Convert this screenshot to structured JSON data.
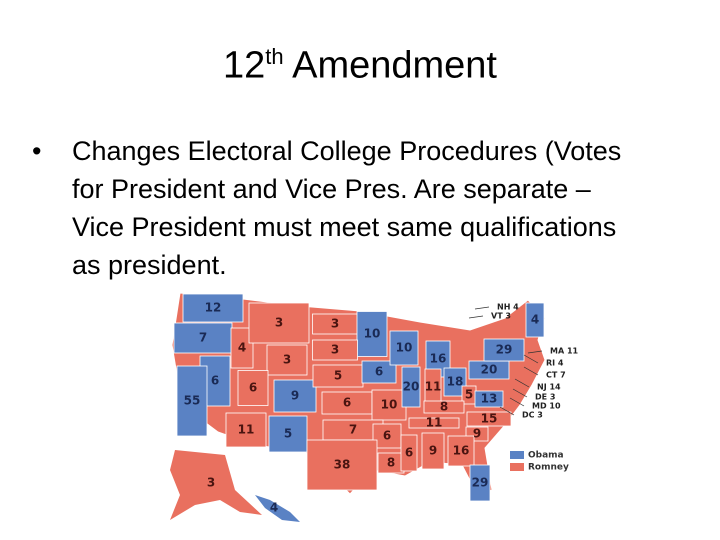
{
  "title": {
    "number": "12",
    "suffix": "th",
    "text": "Amendment"
  },
  "bullet": {
    "symbol": "•",
    "lines": [
      "Changes Electoral College Procedures (Votes",
      "for President and Vice Pres. Are separate –",
      "Vice President must meet same qualifications",
      "as president."
    ]
  },
  "map": {
    "state_labels": [
      "12",
      "7",
      "4",
      "3",
      "3",
      "10",
      "3",
      "3",
      "6",
      "6",
      "9",
      "5",
      "6",
      "10",
      "16",
      "55",
      "6",
      "10",
      "20",
      "11",
      "18",
      "20",
      "29",
      "4",
      "5",
      "13",
      "8",
      "15",
      "11",
      "9",
      "7",
      "11",
      "5",
      "6",
      "38",
      "8",
      "6",
      "9",
      "16",
      "29",
      "3",
      "4"
    ],
    "callouts": [
      "NH 4",
      "VT 3",
      "MA 11",
      "RI 4",
      "CT 7",
      "NJ 14",
      "DE 3",
      "MD 10",
      "DC 3"
    ],
    "legend": [
      "Obama",
      "Romney"
    ]
  }
}
